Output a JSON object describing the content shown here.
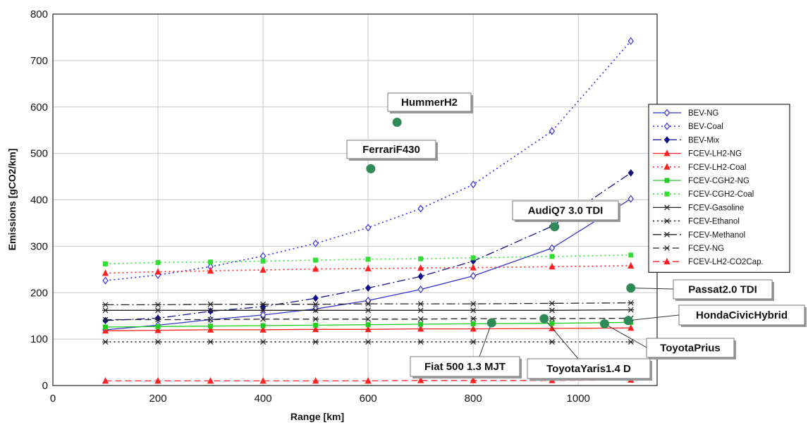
{
  "chart_data": {
    "type": "line",
    "xlabel": "Range [km]",
    "ylabel": "Emissions [gCO2/km]",
    "xlim": [
      0,
      1150
    ],
    "ylim": [
      0,
      800
    ],
    "xticks": [
      0,
      200,
      400,
      600,
      800,
      1000
    ],
    "yticks": [
      0,
      100,
      200,
      300,
      400,
      500,
      600,
      700,
      800
    ],
    "grid": true,
    "legend_position": "right",
    "x": [
      100,
      200,
      300,
      400,
      500,
      600,
      700,
      800,
      950,
      1100
    ],
    "series": [
      {
        "name": "BEV-NG",
        "color": "#3333cc",
        "dash": "solid",
        "marker": "diamond-open",
        "values": [
          120,
          130,
          142,
          152,
          165,
          183,
          207,
          236,
          296,
          402
        ]
      },
      {
        "name": "BEV-Coal",
        "color": "#3333ee",
        "dash": "dot",
        "marker": "diamond-open",
        "values": [
          226,
          238,
          256,
          279,
          306,
          340,
          381,
          433,
          548,
          742
        ]
      },
      {
        "name": "BEV-Mix",
        "color": "#111188",
        "dash": "dashdot",
        "marker": "diamond-filled",
        "values": [
          140,
          145,
          160,
          170,
          188,
          210,
          235,
          268,
          343,
          458
        ]
      },
      {
        "name": "FCEV-LH2-NG",
        "color": "#ff2222",
        "dash": "solid",
        "marker": "triangle",
        "values": [
          118,
          119,
          120,
          120,
          121,
          121,
          122,
          122,
          123,
          124
        ]
      },
      {
        "name": "FCEV-LH2-Coal",
        "color": "#ff2222",
        "dash": "dot",
        "marker": "triangle",
        "values": [
          242,
          245,
          247,
          249,
          251,
          252,
          253,
          254,
          256,
          258
        ]
      },
      {
        "name": "FCEV-CGH2-NG",
        "color": "#22cc22",
        "dash": "solid",
        "marker": "square",
        "values": [
          126,
          127,
          128,
          129,
          130,
          131,
          132,
          133,
          134,
          136
        ]
      },
      {
        "name": "FCEV-CGH2-Coal",
        "color": "#33dd33",
        "dash": "dot",
        "marker": "square",
        "values": [
          262,
          265,
          266,
          268,
          270,
          272,
          273,
          275,
          278,
          281
        ]
      },
      {
        "name": "FCEV-Gasoline",
        "color": "#222222",
        "dash": "solid",
        "marker": "star",
        "values": [
          162,
          162,
          162,
          162,
          162,
          162,
          162,
          162,
          162,
          163
        ]
      },
      {
        "name": "FCEV-Ethanol",
        "color": "#222222",
        "dash": "dot",
        "marker": "star",
        "values": [
          94,
          94,
          94,
          94,
          94,
          94,
          94,
          94,
          94,
          94
        ]
      },
      {
        "name": "FCEV-Methanol",
        "color": "#222222",
        "dash": "dashdot",
        "marker": "star",
        "values": [
          174,
          174,
          175,
          175,
          175,
          176,
          176,
          176,
          177,
          178
        ]
      },
      {
        "name": "FCEV-NG",
        "color": "#222222",
        "dash": "dash",
        "marker": "x",
        "values": [
          142,
          142,
          142,
          143,
          143,
          143,
          143,
          144,
          144,
          145
        ]
      },
      {
        "name": "FCEV-LH2-CO2Cap.",
        "color": "#ff2222",
        "dash": "dash",
        "marker": "triangle",
        "values": [
          10,
          10,
          10,
          10,
          10,
          10,
          11,
          11,
          11,
          12
        ]
      }
    ],
    "vehicles": [
      {
        "label": "HummerH2",
        "x": 655,
        "y": 567
      },
      {
        "label": "FerrariF430",
        "x": 605,
        "y": 467
      },
      {
        "label": "AudiQ7 3.0 TDI",
        "x": 955,
        "y": 342
      },
      {
        "label": "Passat2.0 TDI",
        "x": 1100,
        "y": 210
      },
      {
        "label": "HondaCivicHybrid",
        "x": 1095,
        "y": 140
      },
      {
        "label": "ToyotaPrius",
        "x": 1050,
        "y": 133
      },
      {
        "label": "Fiat 500 1.3 MJT",
        "x": 835,
        "y": 135
      },
      {
        "label": "ToyotaYaris1.4 D",
        "x": 935,
        "y": 144
      }
    ],
    "vehicle_color": "#2e8b57"
  }
}
